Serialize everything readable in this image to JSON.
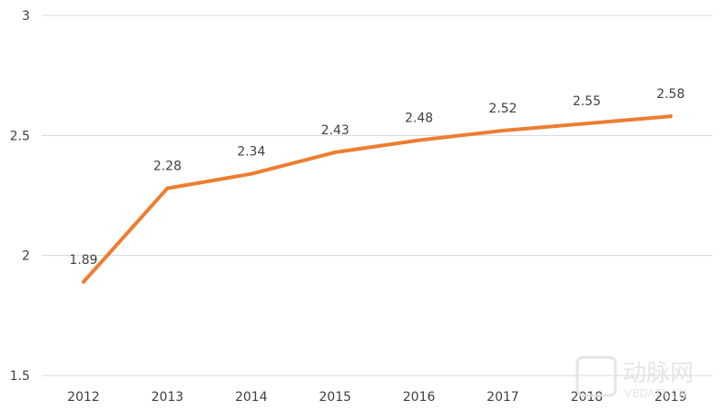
{
  "chart_data": {
    "type": "line",
    "title": "",
    "xlabel": "",
    "ylabel": "",
    "x": [
      "2012",
      "2013",
      "2014",
      "2015",
      "2016",
      "2017",
      "2018",
      "2019"
    ],
    "series": [
      {
        "values": [
          1.89,
          2.28,
          2.34,
          2.43,
          2.48,
          2.52,
          2.55,
          2.58
        ],
        "data_labels": [
          "1.89",
          "2.28",
          "2.34",
          "2.43",
          "2.48",
          "2.52",
          "2.55",
          "2.58"
        ],
        "color": "#ed7d31"
      }
    ],
    "ylim": [
      1.5,
      3
    ],
    "yticks": [
      1.5,
      2,
      2.5,
      3
    ],
    "ytick_labels": [
      "1.5",
      "2",
      "2.5",
      "3"
    ],
    "grid": "horizontal",
    "gridline_color": "#d9d9d9",
    "legend": "none"
  },
  "watermark": {
    "logo_text": "动脉网",
    "site_text": "VBDATA.CN"
  }
}
